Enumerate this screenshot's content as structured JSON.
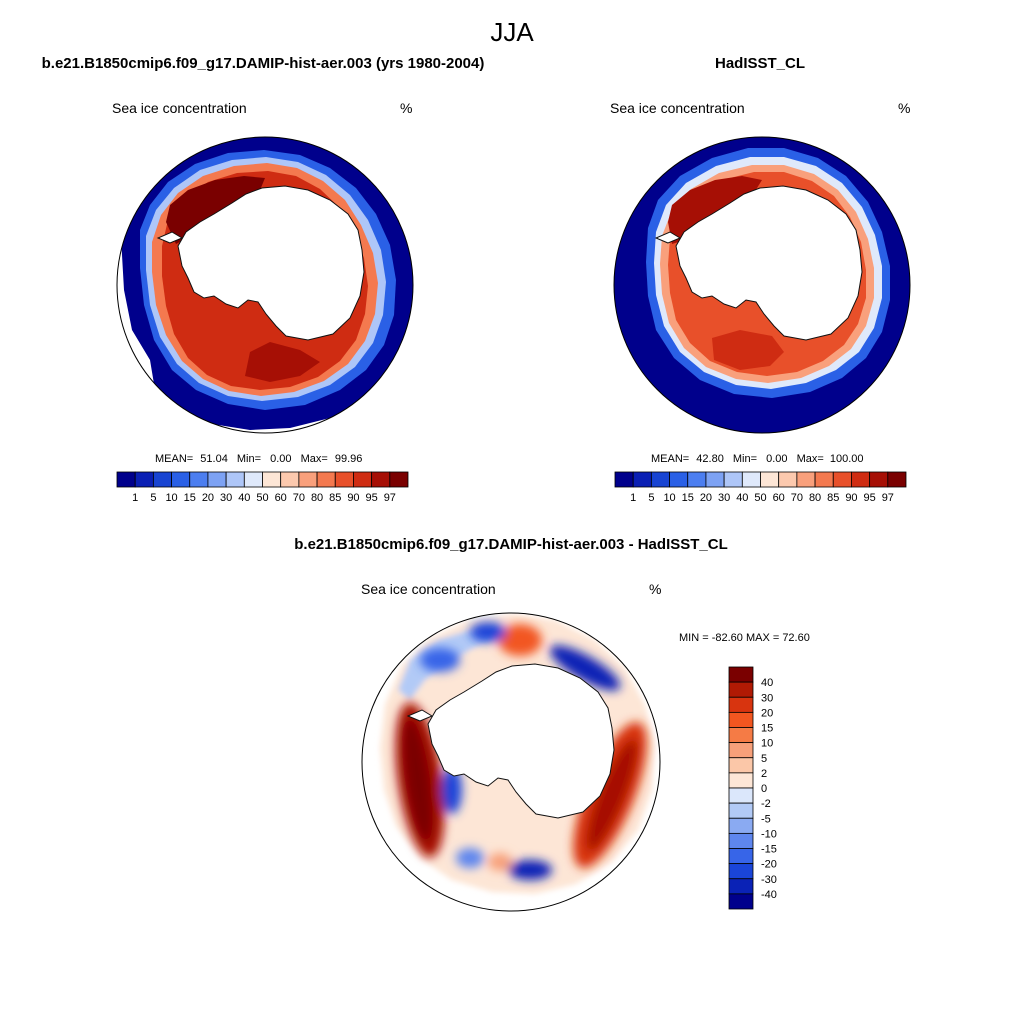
{
  "figure": {
    "season": "JJA"
  },
  "panels": {
    "model": {
      "title": "b.e21.B1850cmip6.f09_g17.DAMIP-hist-aer.003 (yrs 1980-2004)",
      "variable": "Sea ice concentration",
      "units": "%",
      "stats": {
        "mean_label": "MEAN=",
        "mean": "51.04",
        "min_label": "Min=",
        "min": "0.00",
        "max_label": "Max=",
        "max": "99.96"
      }
    },
    "obs": {
      "title": "HadISST_CL",
      "variable": "Sea ice concentration",
      "units": "%",
      "stats": {
        "mean_label": "MEAN=",
        "mean": "42.80",
        "min_label": "Min=",
        "min": "0.00",
        "max_label": "Max=",
        "max": "100.00"
      }
    },
    "diff": {
      "title": "b.e21.B1850cmip6.f09_g17.DAMIP-hist-aer.003 - HadISST_CL",
      "variable": "Sea ice concentration",
      "units": "%",
      "stats_text": "MIN = -82.60 MAX =  72.60"
    }
  },
  "chart_data": [
    {
      "type": "heatmap",
      "projection": "south polar stereographic",
      "title": "b.e21.B1850cmip6.f09_g17.DAMIP-hist-aer.003 (yrs 1980-2004)",
      "variable": "Sea ice concentration",
      "units": "%",
      "mean": 51.04,
      "min": 0.0,
      "max": 99.96,
      "colorbar_levels": [
        1,
        5,
        10,
        15,
        20,
        30,
        40,
        50,
        60,
        70,
        80,
        85,
        90,
        95,
        97
      ],
      "colorbar_colors": [
        "#00008c",
        "#0a1fb4",
        "#1844d2",
        "#2a60e6",
        "#4c7ef0",
        "#7da2f4",
        "#aec6f8",
        "#dfe9fb",
        "#fde6d6",
        "#fcc9ae",
        "#f9a07c",
        "#f4794f",
        "#e8502a",
        "#cf2c12",
        "#a60f05",
        "#7a0000"
      ]
    },
    {
      "type": "heatmap",
      "projection": "south polar stereographic",
      "title": "HadISST_CL",
      "variable": "Sea ice concentration",
      "units": "%",
      "mean": 42.8,
      "min": 0.0,
      "max": 100.0,
      "colorbar_levels": [
        1,
        5,
        10,
        15,
        20,
        30,
        40,
        50,
        60,
        70,
        80,
        85,
        90,
        95,
        97
      ],
      "colorbar_colors": [
        "#00008c",
        "#0a1fb4",
        "#1844d2",
        "#2a60e6",
        "#4c7ef0",
        "#7da2f4",
        "#aec6f8",
        "#dfe9fb",
        "#fde6d6",
        "#fcc9ae",
        "#f9a07c",
        "#f4794f",
        "#e8502a",
        "#cf2c12",
        "#a60f05",
        "#7a0000"
      ]
    },
    {
      "type": "heatmap",
      "projection": "south polar stereographic",
      "title": "b.e21.B1850cmip6.f09_g17.DAMIP-hist-aer.003 - HadISST_CL",
      "variable": "Sea ice concentration",
      "units": "%",
      "min": -82.6,
      "max": 72.6,
      "colorbar_levels": [
        40,
        30,
        20,
        15,
        10,
        5,
        2,
        0,
        -2,
        -5,
        -10,
        -15,
        -20,
        -30,
        -40
      ],
      "colorbar_colors": [
        "#7a0000",
        "#b01a04",
        "#d8340f",
        "#f25620",
        "#f57b45",
        "#f7a07a",
        "#fbc7a8",
        "#fde6d6",
        "#dbe7fb",
        "#b2caf6",
        "#8aaaf2",
        "#5e86ee",
        "#3765e8",
        "#1a45d8",
        "#0a22b6",
        "#00008c"
      ]
    }
  ]
}
